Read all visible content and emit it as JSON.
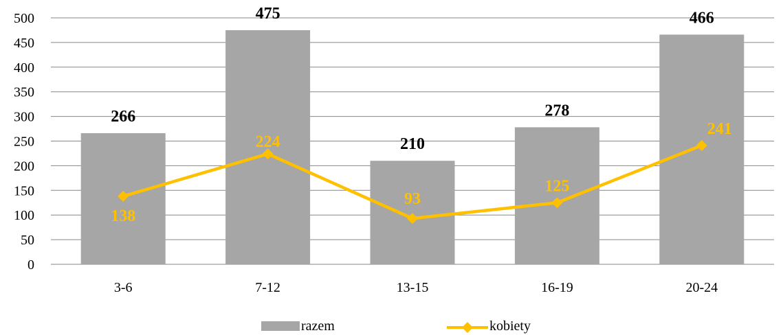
{
  "chart_data": {
    "type": "bar",
    "categories": [
      "3-6",
      "7-12",
      "13-15",
      "16-19",
      "20-24"
    ],
    "series": [
      {
        "name": "razem",
        "type": "bar",
        "values": [
          266,
          475,
          210,
          278,
          466
        ],
        "color": "#a6a6a6",
        "label_color": "#000000"
      },
      {
        "name": "kobiety",
        "type": "line",
        "values": [
          138,
          224,
          93,
          125,
          241
        ],
        "color": "#ffc000",
        "label_color": "#ffc000",
        "marker": "diamond"
      }
    ],
    "ylim": [
      0,
      500
    ],
    "yticks": [
      0,
      50,
      100,
      150,
      200,
      250,
      300,
      350,
      400,
      450,
      500
    ],
    "grid": true,
    "legend_position": "bottom",
    "gridline_color": "#868686"
  }
}
